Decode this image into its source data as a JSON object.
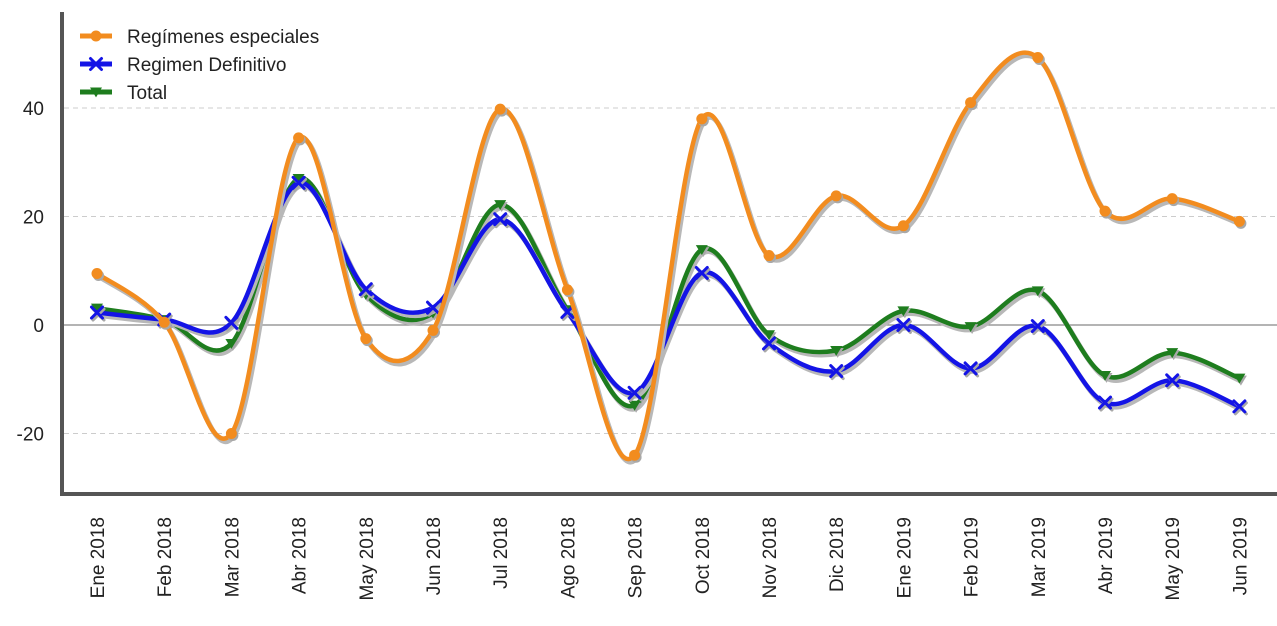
{
  "chart_data": {
    "type": "line",
    "categories": [
      "Ene 2018",
      "Feb 2018",
      "Mar 2018",
      "Abr 2018",
      "May 2018",
      "Jun 2018",
      "Jul 2018",
      "Ago 2018",
      "Sep 2018",
      "Oct 2018",
      "Nov 2018",
      "Dic 2018",
      "Ene 2019",
      "Feb 2019",
      "Mar 2019",
      "Abr 2019",
      "May 2019",
      "Jun 2019"
    ],
    "series": [
      {
        "name": "Regímenes especiales",
        "color": "#f28c1f",
        "marker": "circle",
        "values": [
          9.5,
          0.5,
          -20.0,
          34.5,
          -2.5,
          -1.0,
          39.8,
          6.5,
          -24.0,
          38.0,
          12.8,
          23.8,
          18.3,
          41.0,
          49.3,
          21.0,
          23.3,
          19.1
        ]
      },
      {
        "name": "Regimen Definitivo",
        "color": "#1414e6",
        "marker": "x",
        "values": [
          2.3,
          1.0,
          0.4,
          26.2,
          6.6,
          3.2,
          19.5,
          2.4,
          -12.5,
          9.6,
          -3.4,
          -8.5,
          0.0,
          -8.0,
          -0.2,
          -14.3,
          -10.2,
          -15.0
        ]
      },
      {
        "name": "Total",
        "color": "#1e7d1e",
        "marker": "triangle-down",
        "values": [
          3.1,
          1.0,
          -3.4,
          27.0,
          5.6,
          2.2,
          22.2,
          2.8,
          -14.8,
          13.9,
          -1.8,
          -4.7,
          2.6,
          -0.3,
          6.3,
          -9.3,
          -5.1,
          -9.8
        ]
      }
    ],
    "yticks": [
      "-20",
      "0",
      "20",
      "40"
    ],
    "ylim": [
      -31,
      58
    ],
    "grid": true,
    "legend_position": "top-left",
    "colors": {
      "axis": "#555555",
      "grid": "#cccccc",
      "zero_line": "#888888"
    }
  }
}
